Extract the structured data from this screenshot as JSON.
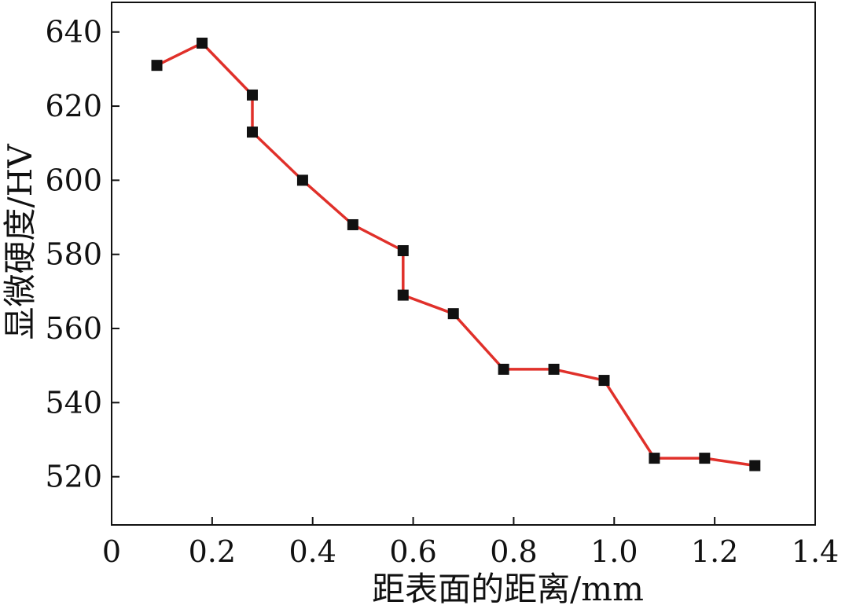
{
  "chart_data": {
    "type": "line",
    "xlabel": "距表面的距离/mm",
    "ylabel": "显微硬度/HV",
    "xlim": [
      0,
      1.4
    ],
    "ylim": [
      507,
      648
    ],
    "xticks": [
      0,
      0.2,
      0.4,
      0.6,
      0.8,
      1.0,
      1.2,
      1.4
    ],
    "xtick_labels": [
      "0",
      "0.2",
      "0.4",
      "0.6",
      "0.8",
      "1.0",
      "1.2",
      "1.4"
    ],
    "yticks": [
      520,
      540,
      560,
      580,
      600,
      620,
      640
    ],
    "ytick_labels": [
      "520",
      "540",
      "560",
      "580",
      "600",
      "620",
      "640"
    ],
    "grid": false,
    "colors": {
      "line": "#e0302a",
      "marker": "#111111",
      "axis": "#111111"
    },
    "series": [
      {
        "x": [
          0.09,
          0.18,
          0.28,
          0.28,
          0.38,
          0.48,
          0.58,
          0.58,
          0.68,
          0.78,
          0.88,
          0.98,
          1.08,
          1.18,
          1.28
        ],
        "y": [
          631,
          637,
          623,
          613,
          600,
          588,
          581,
          569,
          564,
          549,
          549,
          546,
          525,
          525,
          523
        ]
      }
    ]
  }
}
